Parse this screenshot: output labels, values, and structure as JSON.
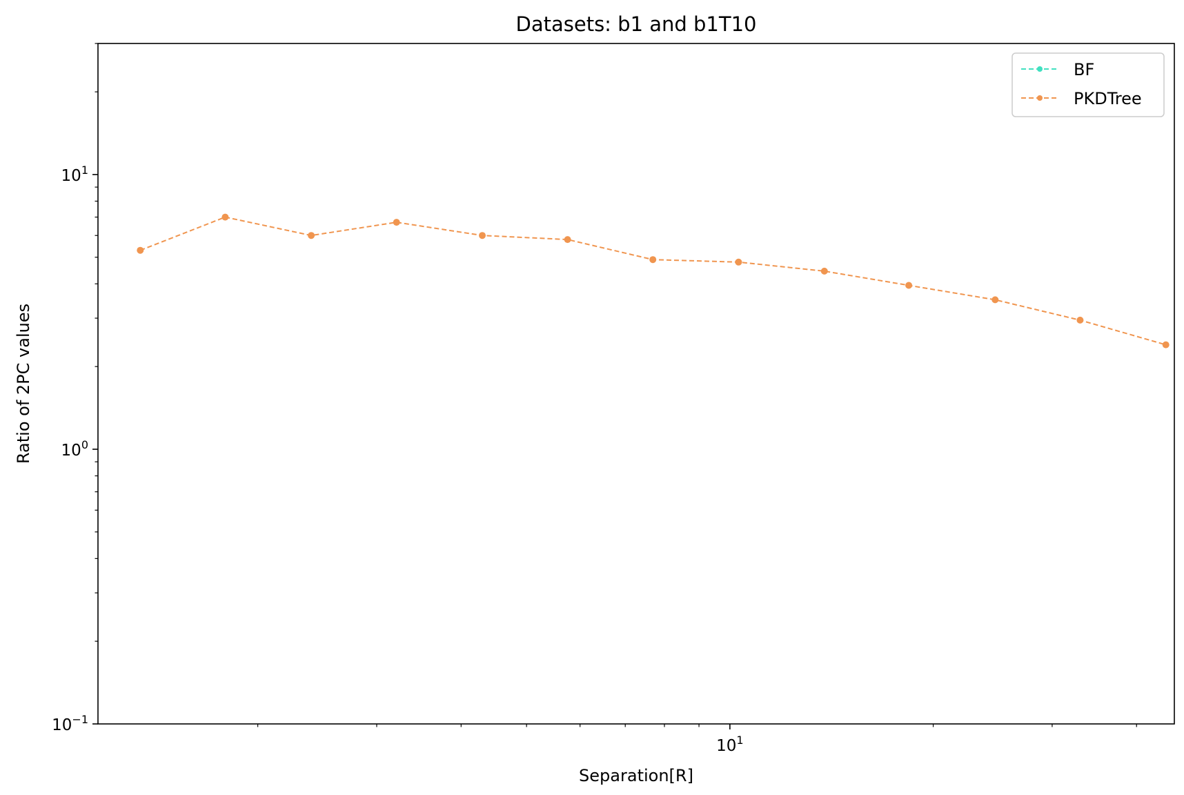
{
  "chart_data": {
    "type": "line",
    "title": "Datasets: b1  and  b1T10",
    "xlabel": "Separation[R]",
    "ylabel": "Ratio of 2PC values",
    "xscale": "log",
    "yscale": "log",
    "xlim": [
      1.16,
      45.5
    ],
    "ylim": [
      0.1,
      30
    ],
    "x_major_ticks": [
      {
        "value": 10,
        "base": "10",
        "exp": "1"
      }
    ],
    "x_minor_ticks": [
      2,
      3,
      4,
      5,
      6,
      7,
      8,
      9,
      20,
      30,
      40
    ],
    "y_major_ticks": [
      {
        "value": 0.1,
        "base": "10",
        "exp": "−1"
      },
      {
        "value": 1,
        "base": "10",
        "exp": "0"
      },
      {
        "value": 10,
        "base": "10",
        "exp": "1"
      }
    ],
    "y_minor_ticks": [
      0.2,
      0.3,
      0.4,
      0.5,
      0.6,
      0.7,
      0.8,
      0.9,
      2,
      3,
      4,
      5,
      6,
      7,
      8,
      9,
      20,
      30
    ],
    "grid": false,
    "legend_position": "top-right",
    "x": [
      1.34,
      1.79,
      2.4,
      3.21,
      4.3,
      5.75,
      7.69,
      10.3,
      13.8,
      18.4,
      24.7,
      33.0,
      44.2
    ],
    "series": [
      {
        "name": "BF",
        "color": "#40e0c0",
        "values": [
          null,
          null,
          null,
          null,
          null,
          null,
          null,
          null,
          null,
          null,
          null,
          null,
          null
        ]
      },
      {
        "name": "PKDTree",
        "color": "#f0954f",
        "values": [
          5.3,
          7.0,
          6.0,
          6.7,
          6.0,
          5.8,
          4.9,
          4.8,
          4.45,
          3.95,
          3.5,
          2.95,
          2.4
        ]
      }
    ]
  }
}
